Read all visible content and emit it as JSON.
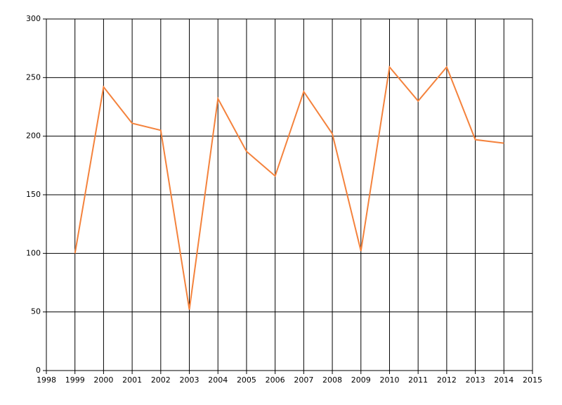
{
  "chart_data": {
    "type": "line",
    "x": [
      1999,
      2000,
      2001,
      2002,
      2003,
      2004,
      2005,
      2006,
      2007,
      2008,
      2009,
      2010,
      2011,
      2012,
      2013,
      2014
    ],
    "series": [
      {
        "color": "#f4823c",
        "values": [
          100,
          242,
          211,
          205,
          52,
          232,
          187,
          166,
          238,
          202,
          102,
          259,
          230,
          259,
          197,
          194
        ]
      }
    ],
    "xlim": [
      1998,
      2015
    ],
    "xticks": [
      1998,
      1999,
      2000,
      2001,
      2002,
      2003,
      2004,
      2005,
      2006,
      2007,
      2008,
      2009,
      2010,
      2011,
      2012,
      2013,
      2014,
      2015
    ],
    "ylim": [
      0,
      300
    ],
    "yticks": [
      0,
      50,
      100,
      150,
      200,
      250,
      300
    ],
    "grid": true
  }
}
